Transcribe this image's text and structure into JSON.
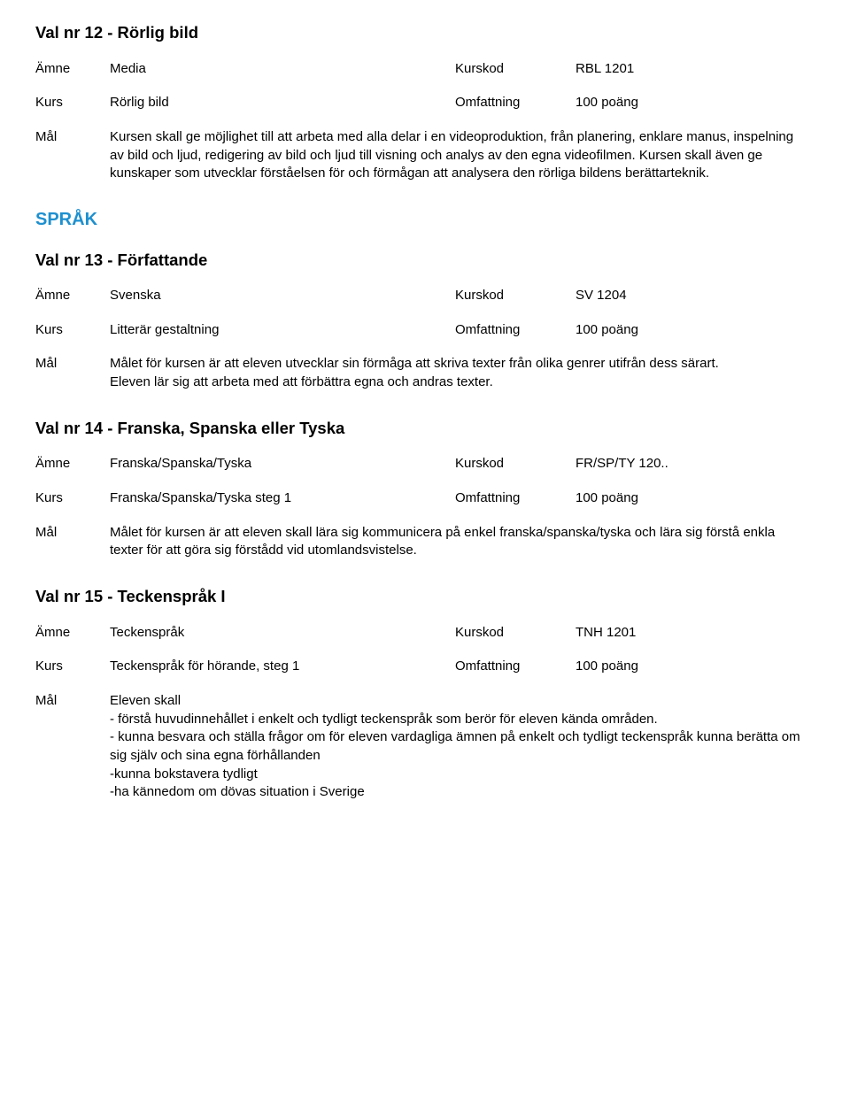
{
  "labels": {
    "amne": "Ämne",
    "kurs": "Kurs",
    "mal": "Mål",
    "kurskod": "Kurskod",
    "omfattning": "Omfattning"
  },
  "section_sprak": "SPRÅK",
  "courses": [
    {
      "val_title": "Val nr 12 - Rörlig bild",
      "subject": "Media",
      "code": "RBL 1201",
      "name": "Rörlig bild",
      "scope": "100 poäng",
      "mal": [
        "Kursen skall ge möjlighet till att arbeta med alla delar i en videoproduktion, från planering, enklare manus, inspelning av bild och ljud, redigering av bild och ljud till visning och analys av den egna videofilmen. Kursen skall även ge kunskaper som utvecklar förståelsen för och förmågan att analysera den rörliga bildens berättarteknik."
      ]
    },
    {
      "val_title": "Val nr 13 - Författande",
      "subject": "Svenska",
      "code": "SV 1204",
      "name": "Litterär gestaltning",
      "scope": "100 poäng",
      "mal": [
        "Målet för kursen är att eleven utvecklar sin förmåga att skriva texter från olika genrer utifrån dess särart.",
        "Eleven lär sig att arbeta med att förbättra egna och andras texter."
      ]
    },
    {
      "val_title": "Val nr 14 - Franska, Spanska eller Tyska",
      "subject": "Franska/Spanska/Tyska",
      "code": "FR/SP/TY 120..",
      "name": "Franska/Spanska/Tyska steg 1",
      "scope": "100 poäng",
      "mal": [
        "Målet för kursen är att eleven skall lära sig kommunicera på enkel franska/spanska/tyska och lära sig förstå enkla texter för att göra sig förstådd vid utomlandsvistelse."
      ]
    },
    {
      "val_title": "Val nr 15 - Teckenspråk I",
      "subject": "Teckenspråk",
      "code": "TNH 1201",
      "name": "Teckenspråk för hörande, steg 1",
      "scope": "100 poäng",
      "mal": [
        "Eleven skall",
        "- förstå huvudinnehållet i enkelt och tydligt teckenspråk som berör för eleven kända områden.",
        "- kunna besvara och ställa frågor om för eleven vardagliga ämnen på enkelt och tydligt teckenspråk kunna berätta om sig själv och sina egna förhållanden",
        "-kunna bokstavera tydligt",
        "-ha kännedom om dövas situation i Sverige"
      ]
    }
  ]
}
